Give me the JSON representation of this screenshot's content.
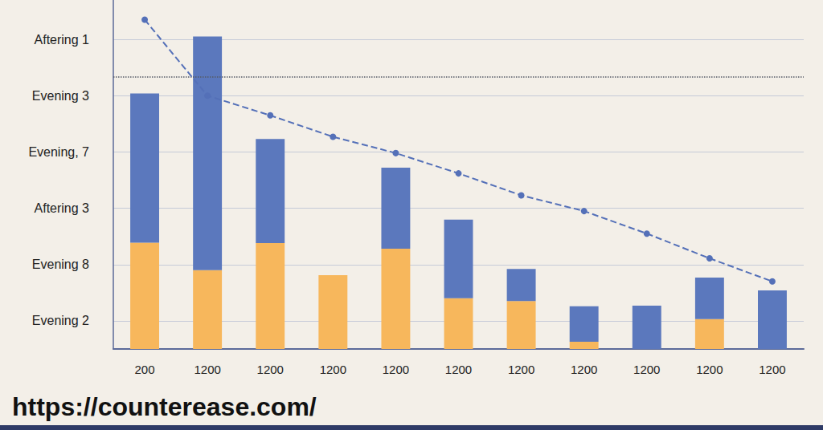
{
  "chart_data": {
    "type": "bar",
    "categories": [
      "200",
      "1200",
      "1200",
      "1200",
      "1200",
      "1200",
      "1200",
      "1200",
      "1200",
      "1200",
      "1200"
    ],
    "series": [
      {
        "type": "bar",
        "color": "#f7b75c",
        "values": [
          1.89,
          1.4,
          1.88,
          1.31,
          1.78,
          0.9,
          0.85,
          0.13,
          0,
          0.53,
          0
        ]
      },
      {
        "type": "bar",
        "color": "#5b78bd",
        "values": [
          2.65,
          4.15,
          1.85,
          0,
          1.44,
          1.4,
          0.57,
          0.63,
          0.77,
          0.74,
          1.04
        ]
      },
      {
        "type": "line",
        "color": "#5470b8",
        "line_style": "dashed",
        "marker": "circle",
        "values": [
          5.85,
          4.5,
          4.15,
          3.77,
          3.48,
          3.12,
          2.73,
          2.45,
          2.05,
          1.61,
          1.2
        ]
      }
    ],
    "ylim": [
      0,
      6.2
    ],
    "yticks": [
      {
        "value": 0.5,
        "label": "Evening 2"
      },
      {
        "value": 1.5,
        "label": "Evening 8"
      },
      {
        "value": 2.5,
        "label": "Aftering 3"
      },
      {
        "value": 3.5,
        "label": "Evening, 7"
      },
      {
        "value": 4.5,
        "label": "Evening 3"
      },
      {
        "value": 5.5,
        "label": "Aftering 1"
      }
    ],
    "grid": true,
    "stacked": true,
    "reference_line": 4.83,
    "source": "https://counterease.com/"
  }
}
